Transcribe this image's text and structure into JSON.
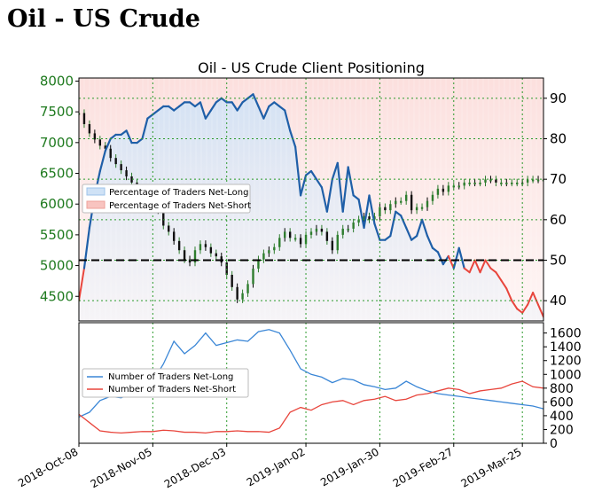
{
  "page": {
    "title": "Oil - US Crude"
  },
  "chart_data": [
    {
      "type": "line",
      "title": "Oil - US Crude Client Positioning",
      "left_axis": {
        "ticks": [
          4500,
          5000,
          5500,
          6000,
          6500,
          7000,
          7500,
          8000
        ],
        "range": [
          4100,
          8050
        ],
        "color": "#1f7a1f"
      },
      "right_axis": {
        "ticks": [
          40,
          50,
          60,
          70,
          80,
          90
        ],
        "range": [
          35,
          95
        ]
      },
      "x_labels": [
        "2018-Oct-08",
        "2018-Nov-05",
        "2018-Dec-03",
        "2019-Jan-02",
        "2019-Jan-30",
        "2019-Feb-27",
        "2019-Mar-25"
      ],
      "reference_line": 50,
      "grid": true,
      "legend": {
        "position": "middle-left",
        "items": [
          "Percentage of Traders Net-Long",
          "Percentage of Traders Net-Short"
        ]
      },
      "series": [
        {
          "name": "Percentage of Traders Net-Long",
          "color_above": "#1f5fa8",
          "color_below": "#e8453c",
          "x": [
            0,
            2,
            4,
            6,
            8,
            10,
            12,
            14,
            16,
            18,
            20,
            22,
            24,
            26,
            28,
            30,
            32,
            34,
            36,
            38,
            40,
            42,
            44,
            46,
            48,
            50,
            52,
            54,
            56,
            58,
            60,
            62,
            64,
            66,
            68,
            70,
            72,
            74,
            76,
            78,
            80,
            82,
            84,
            86,
            88,
            90,
            92,
            94,
            96,
            98,
            100,
            102,
            104,
            106,
            108,
            110,
            112,
            114,
            116,
            118,
            120,
            122,
            124,
            126,
            128,
            130,
            132,
            134,
            136,
            138,
            140,
            142,
            144,
            146,
            148,
            150,
            152,
            154,
            156,
            158,
            160,
            162,
            164,
            166,
            168,
            170,
            172,
            174,
            176
          ],
          "values": [
            40,
            48,
            58,
            66,
            72,
            77,
            80,
            81,
            81,
            82,
            79,
            79,
            80,
            85,
            86,
            87,
            88,
            88,
            87,
            88,
            89,
            89,
            88,
            89,
            85,
            87,
            89,
            90,
            89,
            89,
            87,
            89,
            90,
            91,
            88,
            85,
            88,
            89,
            88,
            87,
            82,
            78,
            66,
            71,
            72,
            70,
            68,
            62,
            70,
            74,
            62,
            73,
            66,
            65,
            58,
            66,
            59,
            55,
            55,
            56,
            62,
            61,
            58,
            55,
            56,
            60,
            56,
            53,
            52,
            49,
            51,
            48,
            53,
            48,
            47,
            50,
            47,
            50,
            48,
            47,
            45,
            43,
            40,
            38,
            37,
            39,
            42,
            39,
            36
          ],
          "note": "values in percent, x as day index from 2018-Oct-08"
        },
        {
          "name": "Price",
          "type": "candlestick",
          "color": "#2e7d2e",
          "x": [
            0,
            2,
            4,
            6,
            8,
            10,
            12,
            14,
            16,
            18,
            20,
            22,
            24,
            26,
            28,
            30,
            32,
            34,
            36,
            38,
            40,
            42,
            44,
            46,
            48,
            50,
            52,
            54,
            56,
            58,
            60,
            62,
            64,
            66,
            68,
            70,
            72,
            74,
            76,
            78,
            80,
            82,
            84,
            86,
            88,
            90,
            92,
            94,
            96,
            98,
            100,
            102,
            104,
            106,
            108,
            110,
            112,
            114,
            116,
            118,
            120,
            122,
            124,
            126,
            128,
            130,
            132,
            134,
            136,
            138,
            140,
            142,
            144,
            146,
            148,
            150,
            152,
            154,
            156,
            158,
            160,
            162,
            164,
            166,
            168,
            170,
            172,
            174,
            176
          ],
          "values": [
            7480,
            7300,
            7150,
            7050,
            6950,
            6900,
            6750,
            6650,
            6550,
            6450,
            6350,
            6250,
            6100,
            6050,
            5950,
            5900,
            5650,
            5550,
            5400,
            5250,
            5100,
            5050,
            5250,
            5350,
            5300,
            5200,
            5150,
            5050,
            4850,
            4650,
            4450,
            4550,
            4700,
            4950,
            5100,
            5200,
            5250,
            5300,
            5450,
            5550,
            5450,
            5450,
            5350,
            5500,
            5550,
            5600,
            5550,
            5400,
            5250,
            5500,
            5600,
            5600,
            5700,
            5750,
            5800,
            5750,
            5800,
            5950,
            5900,
            6000,
            6050,
            6050,
            6150,
            5900,
            5950,
            5950,
            6050,
            6150,
            6250,
            6200,
            6300,
            6300,
            6300,
            6350,
            6350,
            6350,
            6350,
            6400,
            6400,
            6350,
            6350,
            6350,
            6350,
            6350,
            6350,
            6400,
            6400,
            6400,
            6400
          ],
          "note": "approximate daily closes"
        }
      ]
    },
    {
      "type": "line",
      "left_axis": {
        "ticks": [
          0,
          200,
          400,
          600,
          800,
          1000,
          1200,
          1400,
          1600
        ],
        "range": [
          0,
          1750
        ]
      },
      "legend": {
        "position": "bottom-left",
        "items": [
          "Number of Traders Net-Long",
          "Number of Traders Net-Short"
        ]
      },
      "series": [
        {
          "name": "Number of Traders Net-Long",
          "color": "#3a86d6",
          "x": [
            0,
            4,
            8,
            12,
            16,
            20,
            24,
            28,
            32,
            36,
            40,
            44,
            48,
            52,
            56,
            60,
            64,
            68,
            72,
            76,
            80,
            84,
            88,
            92,
            96,
            100,
            104,
            108,
            112,
            116,
            120,
            124,
            128,
            132,
            136,
            140,
            144,
            148,
            152,
            156,
            160,
            164,
            168,
            172,
            176
          ],
          "values": [
            380,
            450,
            620,
            680,
            660,
            720,
            760,
            900,
            1150,
            1480,
            1300,
            1420,
            1600,
            1420,
            1460,
            1500,
            1480,
            1620,
            1650,
            1600,
            1350,
            1080,
            1000,
            960,
            880,
            940,
            920,
            850,
            820,
            780,
            800,
            900,
            820,
            760,
            720,
            700,
            680,
            660,
            640,
            620,
            600,
            580,
            560,
            540,
            500
          ]
        },
        {
          "name": "Number of Traders Net-Short",
          "color": "#e8453c",
          "x": [
            0,
            4,
            8,
            12,
            16,
            20,
            24,
            28,
            32,
            36,
            40,
            44,
            48,
            52,
            56,
            60,
            64,
            68,
            72,
            76,
            80,
            84,
            88,
            92,
            96,
            100,
            104,
            108,
            112,
            116,
            120,
            124,
            128,
            132,
            136,
            140,
            144,
            148,
            152,
            156,
            160,
            164,
            168,
            172,
            176
          ],
          "values": [
            420,
            300,
            180,
            160,
            150,
            160,
            170,
            170,
            190,
            180,
            160,
            160,
            150,
            170,
            170,
            180,
            170,
            170,
            160,
            220,
            450,
            520,
            480,
            560,
            600,
            620,
            560,
            620,
            640,
            680,
            620,
            640,
            700,
            720,
            760,
            800,
            780,
            720,
            760,
            780,
            800,
            860,
            900,
            820,
            800
          ]
        }
      ]
    }
  ]
}
